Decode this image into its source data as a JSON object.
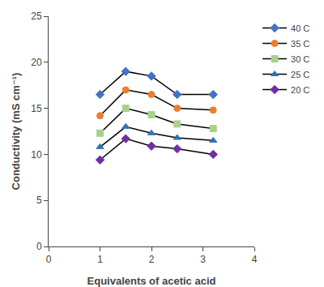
{
  "chart_data": {
    "type": "line",
    "x": [
      1.0,
      1.5,
      2.0,
      2.5,
      3.2
    ],
    "color": "#000000",
    "series": [
      {
        "name": "40 C",
        "color": "#4472c4",
        "marker": "diamond",
        "values": [
          16.5,
          19.0,
          18.5,
          16.5,
          16.5
        ]
      },
      {
        "name": "35 C",
        "color": "#ed7d31",
        "marker": "circle",
        "values": [
          14.2,
          17.0,
          16.5,
          15.0,
          14.8
        ]
      },
      {
        "name": "30 C",
        "color": "#a9d18e",
        "marker": "square",
        "values": [
          12.3,
          15.0,
          14.3,
          13.3,
          12.8
        ]
      },
      {
        "name": "25 C",
        "color": "#2e75b6",
        "marker": "triangle-up",
        "values": [
          10.8,
          13.0,
          12.3,
          11.8,
          11.5
        ]
      },
      {
        "name": "20 C",
        "color": "#7030a0",
        "marker": "diamond",
        "values": [
          9.4,
          11.7,
          10.9,
          10.6,
          10.0
        ]
      }
    ],
    "xlabel": "Equivalents of acetic acid",
    "ylabel": "Conductivity (mS cm⁻¹)",
    "xlim": [
      0,
      4
    ],
    "ylim": [
      0,
      25
    ],
    "xticks": [
      0,
      1,
      2,
      3,
      4
    ],
    "yticks": [
      0,
      5,
      10,
      15,
      20,
      25
    ],
    "grid": false,
    "legend": "right"
  }
}
